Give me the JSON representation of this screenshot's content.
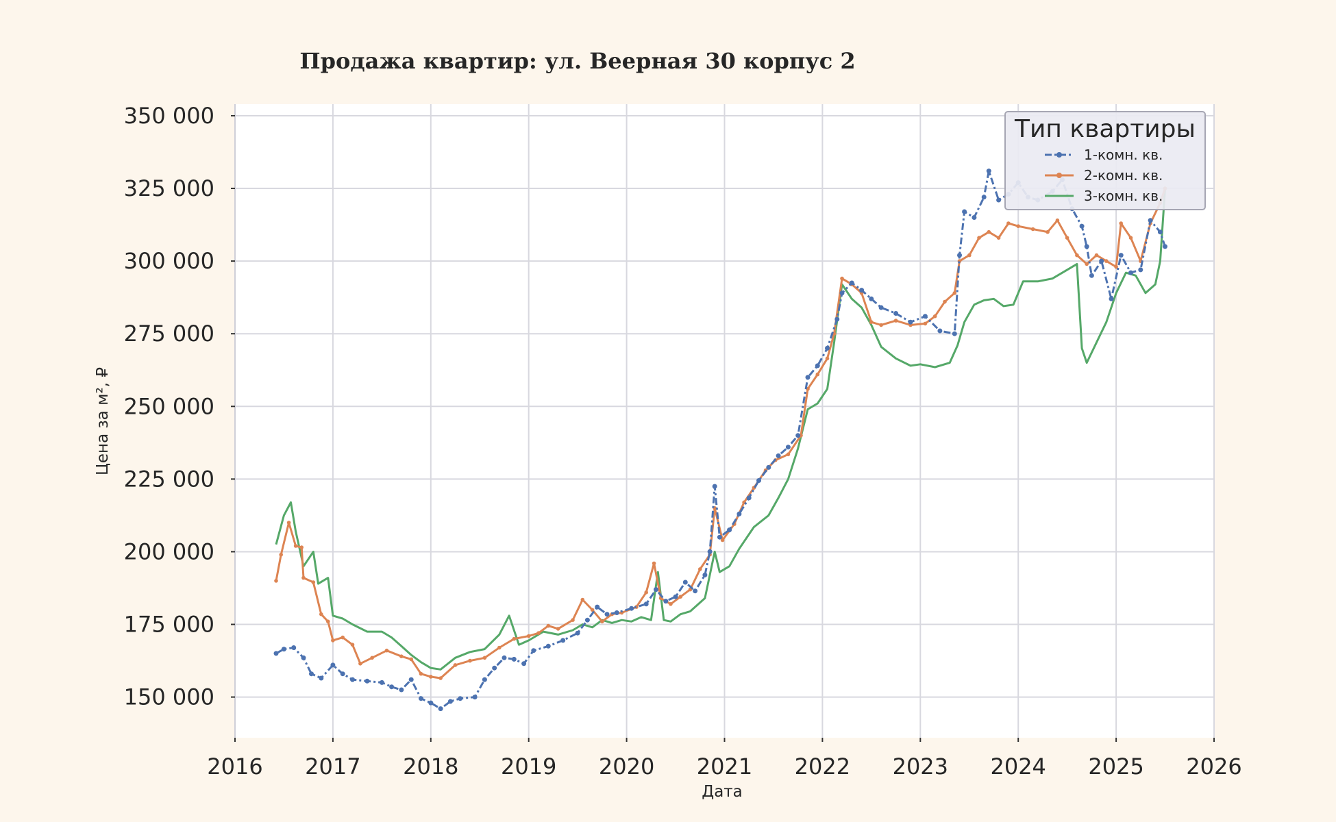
{
  "chart_data": {
    "type": "line",
    "title": "Продажа квартир: ул. Веерная 30 корпус 2",
    "xlabel": "Дата",
    "ylabel": "Цена за м², ₽",
    "xlim": [
      2016,
      2026
    ],
    "ylim": [
      136000,
      354000
    ],
    "x_ticks": [
      "2016",
      "2017",
      "2018",
      "2019",
      "2020",
      "2021",
      "2022",
      "2023",
      "2024",
      "2025",
      "2026"
    ],
    "y_ticks": [
      {
        "value": 150000,
        "label": "150 000"
      },
      {
        "value": 175000,
        "label": "175 000"
      },
      {
        "value": 200000,
        "label": "200 000"
      },
      {
        "value": 225000,
        "label": "225 000"
      },
      {
        "value": 250000,
        "label": "250 000"
      },
      {
        "value": 275000,
        "label": "275 000"
      },
      {
        "value": 300000,
        "label": "300 000"
      },
      {
        "value": 325000,
        "label": "325 000"
      },
      {
        "value": 350000,
        "label": "350 000"
      }
    ],
    "grid": true,
    "legend": {
      "title": "Тип квартиры",
      "placement": "top-right"
    },
    "series": [
      {
        "name": "1-комн. кв.",
        "color": "#4c72b0",
        "style": "dashdot-markers",
        "points": [
          [
            2016.42,
            165000
          ],
          [
            2016.5,
            166500
          ],
          [
            2016.6,
            167000
          ],
          [
            2016.7,
            163500
          ],
          [
            2016.78,
            158000
          ],
          [
            2016.88,
            156500
          ],
          [
            2017.0,
            161000
          ],
          [
            2017.1,
            158000
          ],
          [
            2017.2,
            156000
          ],
          [
            2017.35,
            155500
          ],
          [
            2017.5,
            155000
          ],
          [
            2017.6,
            153500
          ],
          [
            2017.7,
            152500
          ],
          [
            2017.8,
            156000
          ],
          [
            2017.9,
            149500
          ],
          [
            2018.0,
            148000
          ],
          [
            2018.1,
            146000
          ],
          [
            2018.2,
            148500
          ],
          [
            2018.3,
            149500
          ],
          [
            2018.45,
            150000
          ],
          [
            2018.55,
            156000
          ],
          [
            2018.65,
            160000
          ],
          [
            2018.75,
            163500
          ],
          [
            2018.85,
            163000
          ],
          [
            2018.95,
            161500
          ],
          [
            2019.05,
            166000
          ],
          [
            2019.2,
            167500
          ],
          [
            2019.35,
            169500
          ],
          [
            2019.5,
            172000
          ],
          [
            2019.6,
            176500
          ],
          [
            2019.7,
            181000
          ],
          [
            2019.8,
            178500
          ],
          [
            2019.9,
            179000
          ],
          [
            2020.05,
            180500
          ],
          [
            2020.2,
            182000
          ],
          [
            2020.3,
            187000
          ],
          [
            2020.4,
            183000
          ],
          [
            2020.5,
            184500
          ],
          [
            2020.6,
            189500
          ],
          [
            2020.7,
            186500
          ],
          [
            2020.8,
            192000
          ],
          [
            2020.85,
            200000
          ],
          [
            2020.9,
            222500
          ],
          [
            2020.95,
            205000
          ],
          [
            2021.05,
            207500
          ],
          [
            2021.15,
            213000
          ],
          [
            2021.25,
            218500
          ],
          [
            2021.35,
            224500
          ],
          [
            2021.45,
            229000
          ],
          [
            2021.55,
            233000
          ],
          [
            2021.65,
            236000
          ],
          [
            2021.75,
            240000
          ],
          [
            2021.85,
            260000
          ],
          [
            2021.95,
            264000
          ],
          [
            2022.05,
            270000
          ],
          [
            2022.15,
            280000
          ],
          [
            2022.2,
            289000
          ],
          [
            2022.3,
            292500
          ],
          [
            2022.4,
            290000
          ],
          [
            2022.5,
            287000
          ],
          [
            2022.6,
            284000
          ],
          [
            2022.75,
            282000
          ],
          [
            2022.9,
            279000
          ],
          [
            2023.05,
            281000
          ],
          [
            2023.2,
            276000
          ],
          [
            2023.35,
            275000
          ],
          [
            2023.4,
            302000
          ],
          [
            2023.45,
            317000
          ],
          [
            2023.55,
            315000
          ],
          [
            2023.65,
            322000
          ],
          [
            2023.7,
            331000
          ],
          [
            2023.8,
            321000
          ],
          [
            2023.9,
            323000
          ],
          [
            2024.0,
            327000
          ],
          [
            2024.1,
            322000
          ],
          [
            2024.2,
            321000
          ],
          [
            2024.35,
            324000
          ],
          [
            2024.45,
            328000
          ],
          [
            2024.55,
            318000
          ],
          [
            2024.65,
            312000
          ],
          [
            2024.7,
            305000
          ],
          [
            2024.75,
            295000
          ],
          [
            2024.85,
            300000
          ],
          [
            2024.95,
            287000
          ],
          [
            2025.05,
            302000
          ],
          [
            2025.15,
            296000
          ],
          [
            2025.25,
            297000
          ],
          [
            2025.35,
            314000
          ],
          [
            2025.45,
            310000
          ],
          [
            2025.5,
            305000
          ]
        ]
      },
      {
        "name": "2-комн. кв.",
        "color": "#dd8452",
        "style": "solid-markers",
        "points": [
          [
            2016.42,
            190000
          ],
          [
            2016.47,
            199000
          ],
          [
            2016.55,
            210000
          ],
          [
            2016.62,
            202000
          ],
          [
            2016.68,
            201500
          ],
          [
            2016.7,
            191000
          ],
          [
            2016.8,
            189500
          ],
          [
            2016.88,
            178500
          ],
          [
            2016.95,
            176000
          ],
          [
            2017.0,
            169500
          ],
          [
            2017.1,
            170500
          ],
          [
            2017.2,
            168000
          ],
          [
            2017.28,
            161500
          ],
          [
            2017.4,
            163500
          ],
          [
            2017.55,
            166000
          ],
          [
            2017.7,
            164000
          ],
          [
            2017.8,
            163000
          ],
          [
            2017.9,
            158000
          ],
          [
            2018.0,
            157000
          ],
          [
            2018.1,
            156500
          ],
          [
            2018.25,
            161000
          ],
          [
            2018.4,
            162500
          ],
          [
            2018.55,
            163500
          ],
          [
            2018.7,
            167000
          ],
          [
            2018.85,
            170000
          ],
          [
            2019.0,
            171000
          ],
          [
            2019.1,
            172000
          ],
          [
            2019.2,
            174500
          ],
          [
            2019.3,
            173500
          ],
          [
            2019.45,
            176500
          ],
          [
            2019.55,
            183500
          ],
          [
            2019.65,
            180000
          ],
          [
            2019.75,
            176000
          ],
          [
            2019.85,
            178500
          ],
          [
            2019.95,
            179000
          ],
          [
            2020.1,
            181000
          ],
          [
            2020.2,
            186000
          ],
          [
            2020.28,
            196000
          ],
          [
            2020.35,
            184000
          ],
          [
            2020.45,
            182000
          ],
          [
            2020.55,
            184500
          ],
          [
            2020.65,
            187000
          ],
          [
            2020.75,
            194000
          ],
          [
            2020.85,
            199000
          ],
          [
            2020.9,
            215000
          ],
          [
            2020.98,
            204000
          ],
          [
            2021.1,
            209500
          ],
          [
            2021.2,
            217000
          ],
          [
            2021.3,
            222000
          ],
          [
            2021.42,
            228000
          ],
          [
            2021.52,
            231500
          ],
          [
            2021.65,
            233500
          ],
          [
            2021.78,
            240000
          ],
          [
            2021.85,
            256000
          ],
          [
            2021.95,
            261000
          ],
          [
            2022.05,
            266500
          ],
          [
            2022.12,
            275000
          ],
          [
            2022.2,
            294000
          ],
          [
            2022.3,
            292000
          ],
          [
            2022.4,
            289000
          ],
          [
            2022.5,
            279000
          ],
          [
            2022.6,
            278000
          ],
          [
            2022.75,
            279500
          ],
          [
            2022.9,
            278000
          ],
          [
            2023.05,
            278500
          ],
          [
            2023.15,
            281000
          ],
          [
            2023.25,
            286000
          ],
          [
            2023.35,
            289000
          ],
          [
            2023.4,
            300000
          ],
          [
            2023.5,
            302000
          ],
          [
            2023.6,
            308000
          ],
          [
            2023.7,
            310000
          ],
          [
            2023.8,
            308000
          ],
          [
            2023.9,
            313000
          ],
          [
            2024.0,
            312000
          ],
          [
            2024.15,
            311000
          ],
          [
            2024.3,
            310000
          ],
          [
            2024.4,
            314000
          ],
          [
            2024.5,
            308000
          ],
          [
            2024.6,
            302000
          ],
          [
            2024.7,
            299000
          ],
          [
            2024.8,
            302000
          ],
          [
            2024.9,
            300000
          ],
          [
            2025.0,
            298000
          ],
          [
            2025.05,
            313000
          ],
          [
            2025.15,
            308000
          ],
          [
            2025.25,
            300000
          ],
          [
            2025.35,
            313000
          ],
          [
            2025.45,
            320000
          ],
          [
            2025.5,
            325000
          ]
        ]
      },
      {
        "name": "3-комн. кв.",
        "color": "#55a868",
        "style": "solid",
        "points": [
          [
            2016.42,
            202500
          ],
          [
            2016.5,
            212500
          ],
          [
            2016.57,
            217000
          ],
          [
            2016.62,
            207000
          ],
          [
            2016.7,
            195000
          ],
          [
            2016.8,
            200000
          ],
          [
            2016.85,
            189000
          ],
          [
            2016.95,
            191000
          ],
          [
            2017.0,
            178000
          ],
          [
            2017.1,
            177000
          ],
          [
            2017.2,
            175000
          ],
          [
            2017.35,
            172500
          ],
          [
            2017.5,
            172500
          ],
          [
            2017.6,
            170500
          ],
          [
            2017.7,
            167500
          ],
          [
            2017.8,
            164500
          ],
          [
            2017.9,
            162000
          ],
          [
            2018.0,
            160000
          ],
          [
            2018.1,
            159500
          ],
          [
            2018.25,
            163500
          ],
          [
            2018.4,
            165500
          ],
          [
            2018.55,
            166500
          ],
          [
            2018.7,
            171500
          ],
          [
            2018.8,
            178000
          ],
          [
            2018.9,
            168000
          ],
          [
            2019.0,
            169500
          ],
          [
            2019.15,
            172500
          ],
          [
            2019.3,
            171500
          ],
          [
            2019.45,
            173000
          ],
          [
            2019.55,
            175000
          ],
          [
            2019.65,
            174000
          ],
          [
            2019.75,
            176500
          ],
          [
            2019.85,
            175500
          ],
          [
            2019.95,
            176500
          ],
          [
            2020.05,
            176000
          ],
          [
            2020.15,
            177500
          ],
          [
            2020.25,
            176500
          ],
          [
            2020.32,
            193000
          ],
          [
            2020.38,
            176500
          ],
          [
            2020.45,
            176000
          ],
          [
            2020.55,
            178500
          ],
          [
            2020.65,
            179500
          ],
          [
            2020.8,
            184000
          ],
          [
            2020.9,
            200000
          ],
          [
            2020.95,
            193000
          ],
          [
            2021.05,
            195000
          ],
          [
            2021.15,
            201000
          ],
          [
            2021.3,
            208500
          ],
          [
            2021.45,
            212500
          ],
          [
            2021.55,
            218500
          ],
          [
            2021.65,
            225000
          ],
          [
            2021.75,
            235500
          ],
          [
            2021.85,
            249000
          ],
          [
            2021.95,
            251000
          ],
          [
            2022.05,
            256000
          ],
          [
            2022.12,
            272000
          ],
          [
            2022.2,
            292000
          ],
          [
            2022.3,
            287000
          ],
          [
            2022.4,
            284000
          ],
          [
            2022.5,
            278000
          ],
          [
            2022.6,
            270500
          ],
          [
            2022.75,
            266500
          ],
          [
            2022.9,
            264000
          ],
          [
            2023.0,
            264500
          ],
          [
            2023.15,
            263500
          ],
          [
            2023.3,
            265000
          ],
          [
            2023.38,
            271000
          ],
          [
            2023.45,
            279000
          ],
          [
            2023.55,
            285000
          ],
          [
            2023.65,
            286500
          ],
          [
            2023.75,
            287000
          ],
          [
            2023.85,
            284500
          ],
          [
            2023.95,
            285000
          ],
          [
            2024.05,
            293000
          ],
          [
            2024.2,
            293000
          ],
          [
            2024.35,
            294000
          ],
          [
            2024.5,
            297000
          ],
          [
            2024.6,
            299000
          ],
          [
            2024.65,
            270000
          ],
          [
            2024.7,
            265000
          ],
          [
            2024.8,
            272000
          ],
          [
            2024.9,
            279000
          ],
          [
            2025.0,
            289000
          ],
          [
            2025.1,
            296000
          ],
          [
            2025.2,
            295000
          ],
          [
            2025.3,
            289000
          ],
          [
            2025.4,
            292000
          ],
          [
            2025.45,
            300000
          ],
          [
            2025.5,
            325000
          ]
        ]
      }
    ]
  }
}
